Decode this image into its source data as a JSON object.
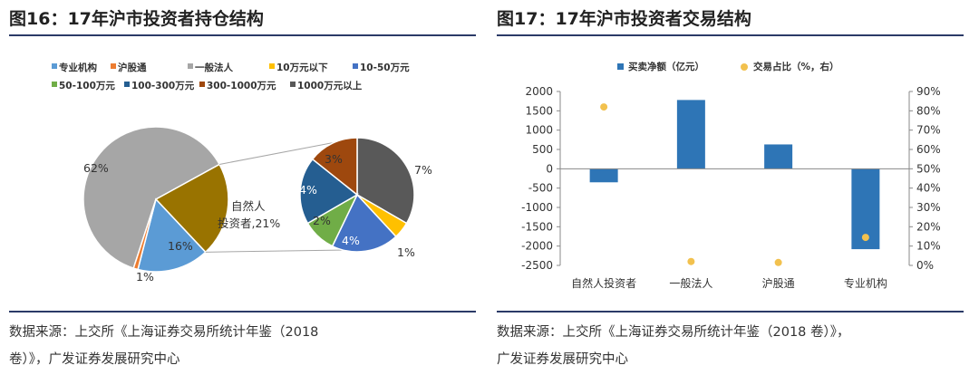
{
  "left": {
    "title": "图16：17年沪市投资者持仓结构",
    "source_line1": "数据来源：上交所《上海证券交易所统计年鉴（2018",
    "source_line2": "卷）》，广发证券发展研究中心",
    "legend": [
      "专业机构",
      "沪股通",
      "一般法人",
      "10万元以下",
      "10-50万元",
      "50-100万元",
      "100-300万元",
      "300-1000万元",
      "1000万元以上"
    ],
    "natural_label_1": "自然人",
    "natural_label_2": "投资者,21%",
    "chart_data": {
      "type": "pie",
      "title": "",
      "main_pie": [
        {
          "name": "一般法人",
          "value": 62,
          "label": "62%",
          "color": "#a6a6a6"
        },
        {
          "name": "自然人投资者",
          "value": 21,
          "label": "",
          "color": "#997300"
        },
        {
          "name": "专业机构",
          "value": 16,
          "label": "16%",
          "color": "#5b9bd5"
        },
        {
          "name": "沪股通",
          "value": 1,
          "label": "1%",
          "color": "#ed7d31"
        }
      ],
      "sub_pie": [
        {
          "name": "1000万元以上",
          "value": 7,
          "label": "7%",
          "color": "#595959"
        },
        {
          "name": "10万元以下",
          "value": 1,
          "label": "1%",
          "color": "#ffc000"
        },
        {
          "name": "10-50万元",
          "value": 4,
          "label": "4%",
          "color": "#4472c4"
        },
        {
          "name": "50-100万元",
          "value": 2,
          "label": "2%",
          "color": "#70ad47"
        },
        {
          "name": "100-300万元",
          "value": 4,
          "label": "4%",
          "color": "#255e91"
        },
        {
          "name": "300-1000万元",
          "value": 3,
          "label": "3%",
          "color": "#9e480e"
        }
      ]
    }
  },
  "right": {
    "title": "图17：17年沪市投资者交易结构",
    "source_line1": "数据来源：上交所《上海证券交易所统计年鉴（2018 卷）》，",
    "source_line2": "广发证券发展研究中心",
    "chart_data": {
      "type": "bar",
      "title": "",
      "categories": [
        "自然人投资者",
        "一般法人",
        "沪股通",
        "专业机构"
      ],
      "series": [
        {
          "name": "买卖净额（亿元）",
          "type": "bar",
          "axis": "left",
          "color": "#2e75b6",
          "values": [
            -350,
            1780,
            630,
            -2080
          ]
        },
        {
          "name": "交易占比（%，右）",
          "type": "scatter",
          "axis": "right",
          "color": "#f2c14e",
          "values": [
            82,
            2,
            1.5,
            14.5
          ]
        }
      ],
      "ylim": [
        -2500,
        2000
      ],
      "y_ticks": [
        "2000",
        "1500",
        "1000",
        "500",
        "0",
        "-500",
        "-1000",
        "-1500",
        "-2000",
        "-2500"
      ],
      "y2lim": [
        0,
        90
      ],
      "y2_ticks": [
        "90%",
        "80%",
        "70%",
        "60%",
        "50%",
        "40%",
        "30%",
        "20%",
        "10%",
        "0%"
      ],
      "legend_position": "top"
    }
  }
}
